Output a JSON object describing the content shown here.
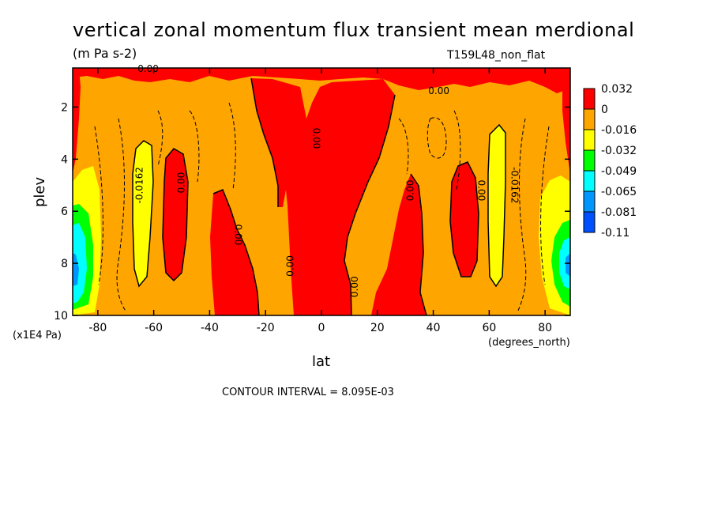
{
  "title": "vertical zonal momentum flux transient mean merdional",
  "units": "(m Pa s-2)",
  "dataset": "T159L48_non_flat",
  "y_unit": "(x1E4 Pa)",
  "x_unit": "(degrees_north)",
  "xlabel": "lat",
  "ylabel": "plev",
  "contour_interval": "CONTOUR INTERVAL = 8.095E-03",
  "colors": {
    "red": "#ff0000",
    "orange": "#ffa500",
    "yellow": "#ffff00",
    "green": "#00ff00",
    "cyan": "#00ffff",
    "lightblue": "#0096ff",
    "blue": "#0050ff"
  },
  "chart_data": {
    "type": "heatmap",
    "x_ticks": [
      -80,
      -60,
      -40,
      -20,
      0,
      20,
      40,
      60,
      80
    ],
    "x_tick_labels": [
      "-80",
      "-60",
      "-40",
      "-20",
      "0",
      "20",
      "40",
      "60",
      "80"
    ],
    "xlim": [
      -89,
      89
    ],
    "y_ticks": [
      2,
      4,
      6,
      8,
      10
    ],
    "y_tick_labels": [
      "2",
      "4",
      "6",
      "8",
      "10"
    ],
    "ylim": [
      10,
      0.5
    ],
    "colorbar": {
      "labels": [
        "0.032",
        "0",
        "-0.016",
        "-0.032",
        "-0.049",
        "-0.065",
        "-0.081",
        "-0.11"
      ],
      "colors": [
        "#ff0000",
        "#ffa500",
        "#ffff00",
        "#00ff00",
        "#00ffff",
        "#0096ff",
        "#0050ff"
      ]
    },
    "contour_labels": [
      {
        "text": "0.00",
        "lat": -62,
        "plev": 0.55,
        "angle": 0
      },
      {
        "text": "0.00",
        "lat": 42,
        "plev": 1.4,
        "angle": 0
      },
      {
        "text": "0.00",
        "lat": -2,
        "plev": 3.2,
        "angle": 90
      },
      {
        "text": "-0.0162",
        "lat": -65,
        "plev": 5.0,
        "angle": -90
      },
      {
        "text": "0.00",
        "lat": -50,
        "plev": 4.9,
        "angle": -90
      },
      {
        "text": "0.00",
        "lat": -30,
        "plev": 6.9,
        "angle": 90
      },
      {
        "text": "0.00",
        "lat": -11,
        "plev": 8.1,
        "angle": -90
      },
      {
        "text": "0.00",
        "lat": 12,
        "plev": 8.9,
        "angle": -90
      },
      {
        "text": "0.00",
        "lat": 32,
        "plev": 5.2,
        "angle": -90
      },
      {
        "text": "0.00",
        "lat": 57,
        "plev": 5.2,
        "angle": 90
      },
      {
        "text": "-0.0162",
        "lat": 69,
        "plev": 5.0,
        "angle": 90
      }
    ]
  }
}
